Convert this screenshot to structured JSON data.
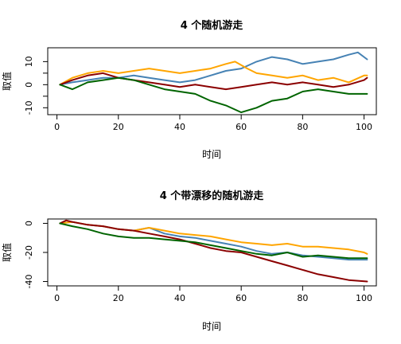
{
  "chart_data": [
    {
      "type": "line",
      "title": "4 个随机游走",
      "xlabel": "时间",
      "ylabel": "取值",
      "xlim": [
        -3,
        104
      ],
      "ylim": [
        -13,
        16
      ],
      "xticks": [
        0,
        20,
        40,
        60,
        80,
        100
      ],
      "yticks": [
        -10,
        -5,
        0,
        5,
        10
      ],
      "yticklabels": [
        "-10",
        "",
        "0",
        "",
        "10"
      ],
      "grid": false,
      "series": [
        {
          "color": "#4682B4",
          "x": [
            1,
            5,
            10,
            15,
            20,
            25,
            30,
            35,
            40,
            45,
            50,
            55,
            60,
            65,
            70,
            75,
            80,
            85,
            90,
            95,
            98,
            101
          ],
          "values": [
            0,
            1,
            2,
            3,
            3,
            4,
            3,
            2,
            1,
            2,
            4,
            6,
            7,
            10,
            12,
            11,
            9,
            10,
            11,
            13,
            14,
            11
          ]
        },
        {
          "color": "#FFA500",
          "x": [
            1,
            5,
            10,
            15,
            20,
            25,
            30,
            35,
            40,
            45,
            50,
            55,
            58,
            62,
            65,
            70,
            75,
            80,
            85,
            90,
            95,
            100,
            101
          ],
          "values": [
            0,
            3,
            5,
            6,
            5,
            6,
            7,
            6,
            5,
            6,
            7,
            9,
            10,
            7,
            5,
            4,
            3,
            4,
            2,
            3,
            1,
            4,
            4
          ]
        },
        {
          "color": "#8B0000",
          "x": [
            1,
            5,
            10,
            15,
            20,
            25,
            30,
            35,
            40,
            45,
            50,
            55,
            60,
            65,
            70,
            75,
            80,
            85,
            90,
            95,
            100,
            101
          ],
          "values": [
            0,
            2,
            4,
            5,
            3,
            2,
            1,
            0,
            -1,
            0,
            -1,
            -2,
            -1,
            0,
            1,
            0,
            1,
            0,
            -1,
            0,
            2,
            3
          ]
        },
        {
          "color": "#006400",
          "x": [
            1,
            5,
            10,
            15,
            20,
            25,
            30,
            35,
            40,
            45,
            50,
            55,
            60,
            65,
            70,
            75,
            80,
            85,
            90,
            95,
            101
          ],
          "values": [
            0,
            -2,
            1,
            2,
            3,
            2,
            0,
            -2,
            -3,
            -4,
            -7,
            -9,
            -12,
            -10,
            -7,
            -6,
            -3,
            -2,
            -3,
            -4,
            -4
          ]
        }
      ]
    },
    {
      "type": "line",
      "title": "4 个带漂移的随机游走",
      "xlabel": "时间",
      "ylabel": "取值",
      "xlim": [
        -3,
        104
      ],
      "ylim": [
        -43,
        3
      ],
      "xticks": [
        0,
        20,
        40,
        60,
        80,
        100
      ],
      "yticks": [
        0,
        -20,
        -40
      ],
      "yticklabels": [
        "0",
        "-20",
        "-40"
      ],
      "grid": false,
      "series": [
        {
          "color": "#4682B4",
          "x": [
            1,
            5,
            10,
            15,
            20,
            25,
            30,
            35,
            40,
            45,
            50,
            55,
            60,
            65,
            70,
            75,
            80,
            85,
            90,
            95,
            101
          ],
          "values": [
            0,
            1,
            -1,
            -2,
            -4,
            -5,
            -3,
            -7,
            -9,
            -10,
            -12,
            -14,
            -16,
            -19,
            -21,
            -20,
            -22,
            -23,
            -24,
            -25,
            -25
          ]
        },
        {
          "color": "#FFA500",
          "x": [
            1,
            5,
            10,
            15,
            20,
            25,
            30,
            35,
            40,
            45,
            50,
            55,
            60,
            65,
            70,
            75,
            80,
            85,
            90,
            95,
            100,
            101
          ],
          "values": [
            0,
            1,
            -1,
            -2,
            -4,
            -5,
            -3,
            -5,
            -7,
            -8,
            -9,
            -11,
            -13,
            -14,
            -15,
            -14,
            -16,
            -16,
            -17,
            -18,
            -20,
            -21
          ]
        },
        {
          "color": "#8B0000",
          "x": [
            1,
            3,
            5,
            10,
            15,
            20,
            25,
            30,
            35,
            40,
            45,
            50,
            55,
            60,
            65,
            70,
            75,
            80,
            85,
            90,
            95,
            101
          ],
          "values": [
            0,
            2,
            1,
            -1,
            -2,
            -4,
            -5,
            -7,
            -9,
            -11,
            -14,
            -17,
            -19,
            -20,
            -23,
            -26,
            -29,
            -32,
            -35,
            -37,
            -39,
            -40
          ]
        },
        {
          "color": "#006400",
          "x": [
            1,
            5,
            10,
            15,
            20,
            25,
            30,
            35,
            40,
            45,
            50,
            55,
            60,
            65,
            70,
            75,
            80,
            85,
            90,
            95,
            101
          ],
          "values": [
            0,
            -2,
            -4,
            -7,
            -9,
            -10,
            -10,
            -11,
            -12,
            -13,
            -15,
            -17,
            -19,
            -21,
            -22,
            -20,
            -23,
            -22,
            -23,
            -24,
            -24
          ]
        }
      ]
    }
  ]
}
